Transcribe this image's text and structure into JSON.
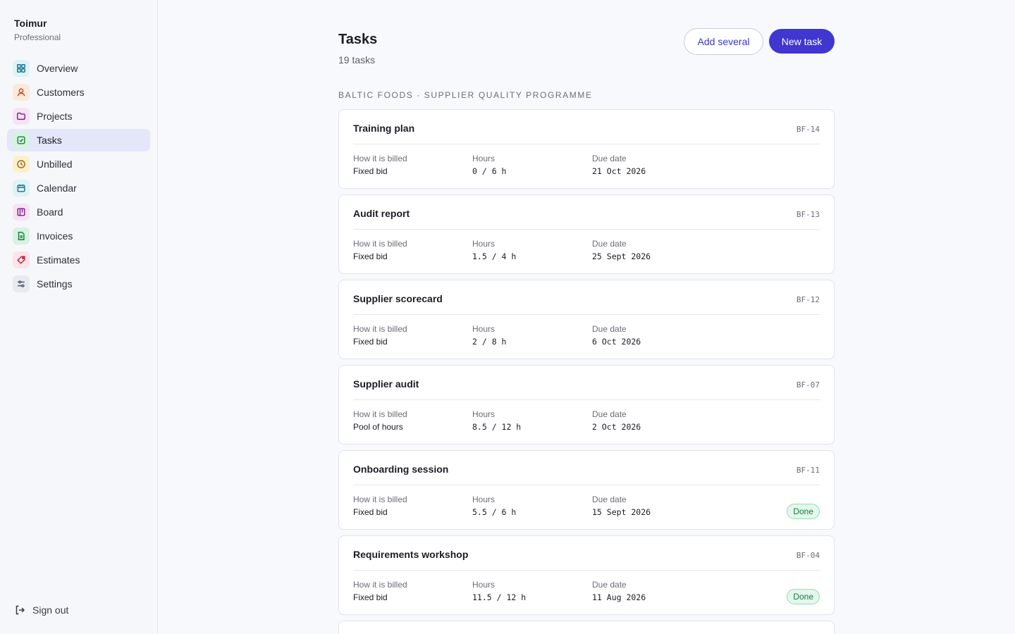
{
  "app": {
    "user_name": "Toimur",
    "plan": "Professional"
  },
  "sidebar": {
    "items": [
      {
        "label": "Overview",
        "icon": "grid-icon",
        "color": "#0e7490",
        "bg": "#dff3f7",
        "active": false
      },
      {
        "label": "Customers",
        "icon": "person-icon",
        "color": "#c2410c",
        "bg": "#fde9dc",
        "active": false
      },
      {
        "label": "Projects",
        "icon": "folder-icon",
        "color": "#86198f",
        "bg": "#f6e3f6",
        "active": false
      },
      {
        "label": "Tasks",
        "icon": "checkbox-icon",
        "color": "#15803d",
        "bg": "#d7f2e0",
        "active": true
      },
      {
        "label": "Unbilled",
        "icon": "clock-icon",
        "color": "#a16207",
        "bg": "#faf0cc",
        "active": false
      },
      {
        "label": "Calendar",
        "icon": "calendar-icon",
        "color": "#0e7490",
        "bg": "#dff3f7",
        "active": false
      },
      {
        "label": "Board",
        "icon": "kanban-icon",
        "color": "#86198f",
        "bg": "#f6e3f6",
        "active": false
      },
      {
        "label": "Invoices",
        "icon": "document-icon",
        "color": "#15803d",
        "bg": "#d7f2e0",
        "active": false
      },
      {
        "label": "Estimates",
        "icon": "tag-icon",
        "color": "#be123c",
        "bg": "#fce4e8",
        "active": false
      },
      {
        "label": "Settings",
        "icon": "sliders-icon",
        "color": "#475569",
        "bg": "#e8eaf0",
        "active": false
      }
    ],
    "signout_label": "Sign out"
  },
  "header": {
    "title": "Tasks",
    "count": "19 tasks",
    "add_several_label": "Add several",
    "new_task_label": "New task"
  },
  "group": {
    "label": "BALTIC FOODS · SUPPLIER QUALITY PROGRAMME"
  },
  "field_labels": {
    "billing": "How it is billed",
    "hours": "Hours",
    "due": "Due date"
  },
  "tasks": [
    {
      "title": "Training plan",
      "code": "BF-14",
      "billing": "Fixed bid",
      "hours": "0 / 6 h",
      "due": "21 Oct 2026",
      "status": ""
    },
    {
      "title": "Audit report",
      "code": "BF-13",
      "billing": "Fixed bid",
      "hours": "1.5 / 4 h",
      "due": "25 Sept 2026",
      "status": ""
    },
    {
      "title": "Supplier scorecard",
      "code": "BF-12",
      "billing": "Fixed bid",
      "hours": "2 / 8 h",
      "due": "6 Oct 2026",
      "status": ""
    },
    {
      "title": "Supplier audit",
      "code": "BF-07",
      "billing": "Pool of hours",
      "hours": "8.5 / 12 h",
      "due": "2 Oct 2026",
      "status": ""
    },
    {
      "title": "Onboarding session",
      "code": "BF-11",
      "billing": "Fixed bid",
      "hours": "5.5 / 6 h",
      "due": "15 Sept 2026",
      "status": "Done"
    },
    {
      "title": "Requirements workshop",
      "code": "BF-04",
      "billing": "Fixed bid",
      "hours": "11.5 / 12 h",
      "due": "11 Aug 2026",
      "status": "Done"
    }
  ],
  "colors": {
    "accent": "#3f37d0",
    "active_nav_bg": "#e4e7f9",
    "done_badge_bg": "#e3f7ec",
    "done_badge_text": "#167a46"
  }
}
